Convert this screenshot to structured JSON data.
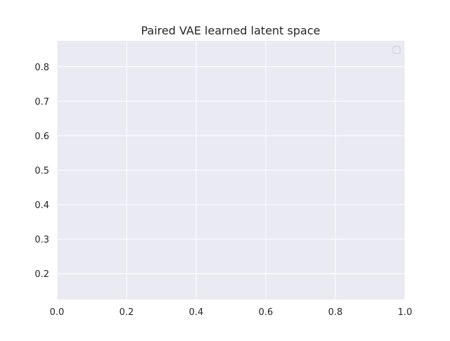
{
  "chart_data": {
    "type": "scatter",
    "title": "Paired VAE learned latent space",
    "xlabel": "",
    "ylabel": "",
    "xlim": [
      0.0,
      1.0
    ],
    "ylim": [
      0.125,
      0.875
    ],
    "x_ticks": [
      0.0,
      0.2,
      0.4,
      0.6,
      0.8,
      1.0
    ],
    "x_tick_labels": [
      "0.0",
      "0.2",
      "0.4",
      "0.6",
      "0.8",
      "1.0"
    ],
    "y_ticks": [
      0.2,
      0.3,
      0.4,
      0.5,
      0.6,
      0.7,
      0.8
    ],
    "y_tick_labels": [
      "0.2",
      "0.3",
      "0.4",
      "0.5",
      "0.6",
      "0.7",
      "0.8"
    ],
    "series": [],
    "grid": true,
    "legend": {
      "position": "upper right",
      "entries": []
    },
    "colors": {
      "plot_background": "#eaeaf2",
      "grid": "#ffffff",
      "text": "#262626",
      "legend_border": "#cccccc"
    }
  }
}
